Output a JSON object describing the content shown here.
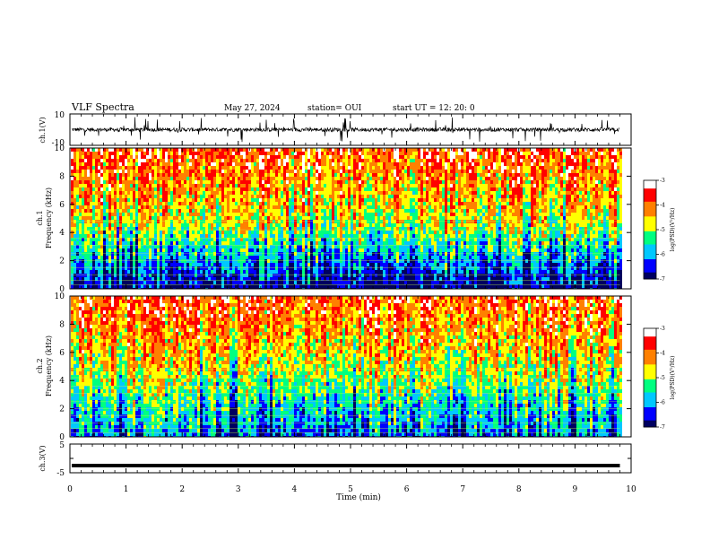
{
  "header": {
    "title": "VLF Spectra",
    "date": "May 27, 2024",
    "station": "station= OUI",
    "start": "start UT = 12: 20: 0"
  },
  "chart_data": [
    {
      "type": "line",
      "panel": "ch1-waveform",
      "ylabel": "ch.1(V)",
      "ylim": [
        -10,
        10
      ],
      "yticks": [
        "10",
        "-10"
      ],
      "xlim": [
        0,
        10
      ],
      "description_values": {
        "baseline_v": 0,
        "typical_amplitude_v": 1.2,
        "spike_max_v": 8,
        "data_end_min": 9.8
      }
    },
    {
      "type": "heatmap",
      "panel": "ch1-spectrogram",
      "ylabel": "ch.1\nFrequency (kHz)",
      "ylim": [
        0,
        10
      ],
      "yticks": [
        "0",
        "2",
        "4",
        "6",
        "8",
        "10"
      ],
      "xlim": [
        0,
        10
      ],
      "data_end_min": 9.8,
      "colorbar": {
        "min": -7,
        "max": -3,
        "ticks": [
          "-3",
          "-4",
          "-5",
          "-6",
          "-7"
        ],
        "label": "log(PSD)(V²/Hz)"
      }
    },
    {
      "type": "heatmap",
      "panel": "ch2-spectrogram",
      "ylabel": "ch.2\nFrequency (kHz)",
      "ylim": [
        0,
        10
      ],
      "yticks": [
        "0",
        "2",
        "4",
        "6",
        "8",
        "10"
      ],
      "xlim": [
        0,
        10
      ],
      "data_end_min": 9.8,
      "colorbar": {
        "min": -7,
        "max": -3,
        "ticks": [
          "-3",
          "-4",
          "-5",
          "-6",
          "-7"
        ],
        "label": "log(PSD)(V²/Hz)"
      }
    },
    {
      "type": "line",
      "panel": "ch3-waveform",
      "ylabel": "ch.3(V)",
      "ylim": [
        -5,
        5
      ],
      "yticks": [
        "5",
        "-5"
      ],
      "xlim": [
        0,
        10
      ],
      "values": [
        -2.5,
        -2.5
      ],
      "x": [
        0,
        9.8
      ]
    }
  ],
  "xaxis": {
    "label": "Time (min)",
    "ticks": [
      "0",
      "1",
      "2",
      "3",
      "4",
      "5",
      "6",
      "7",
      "8",
      "9",
      "10"
    ]
  },
  "colormap": [
    "#000060",
    "#0000ff",
    "#00c8ff",
    "#00ff80",
    "#ffff00",
    "#ff8000",
    "#ff0000",
    "#ffffff"
  ]
}
